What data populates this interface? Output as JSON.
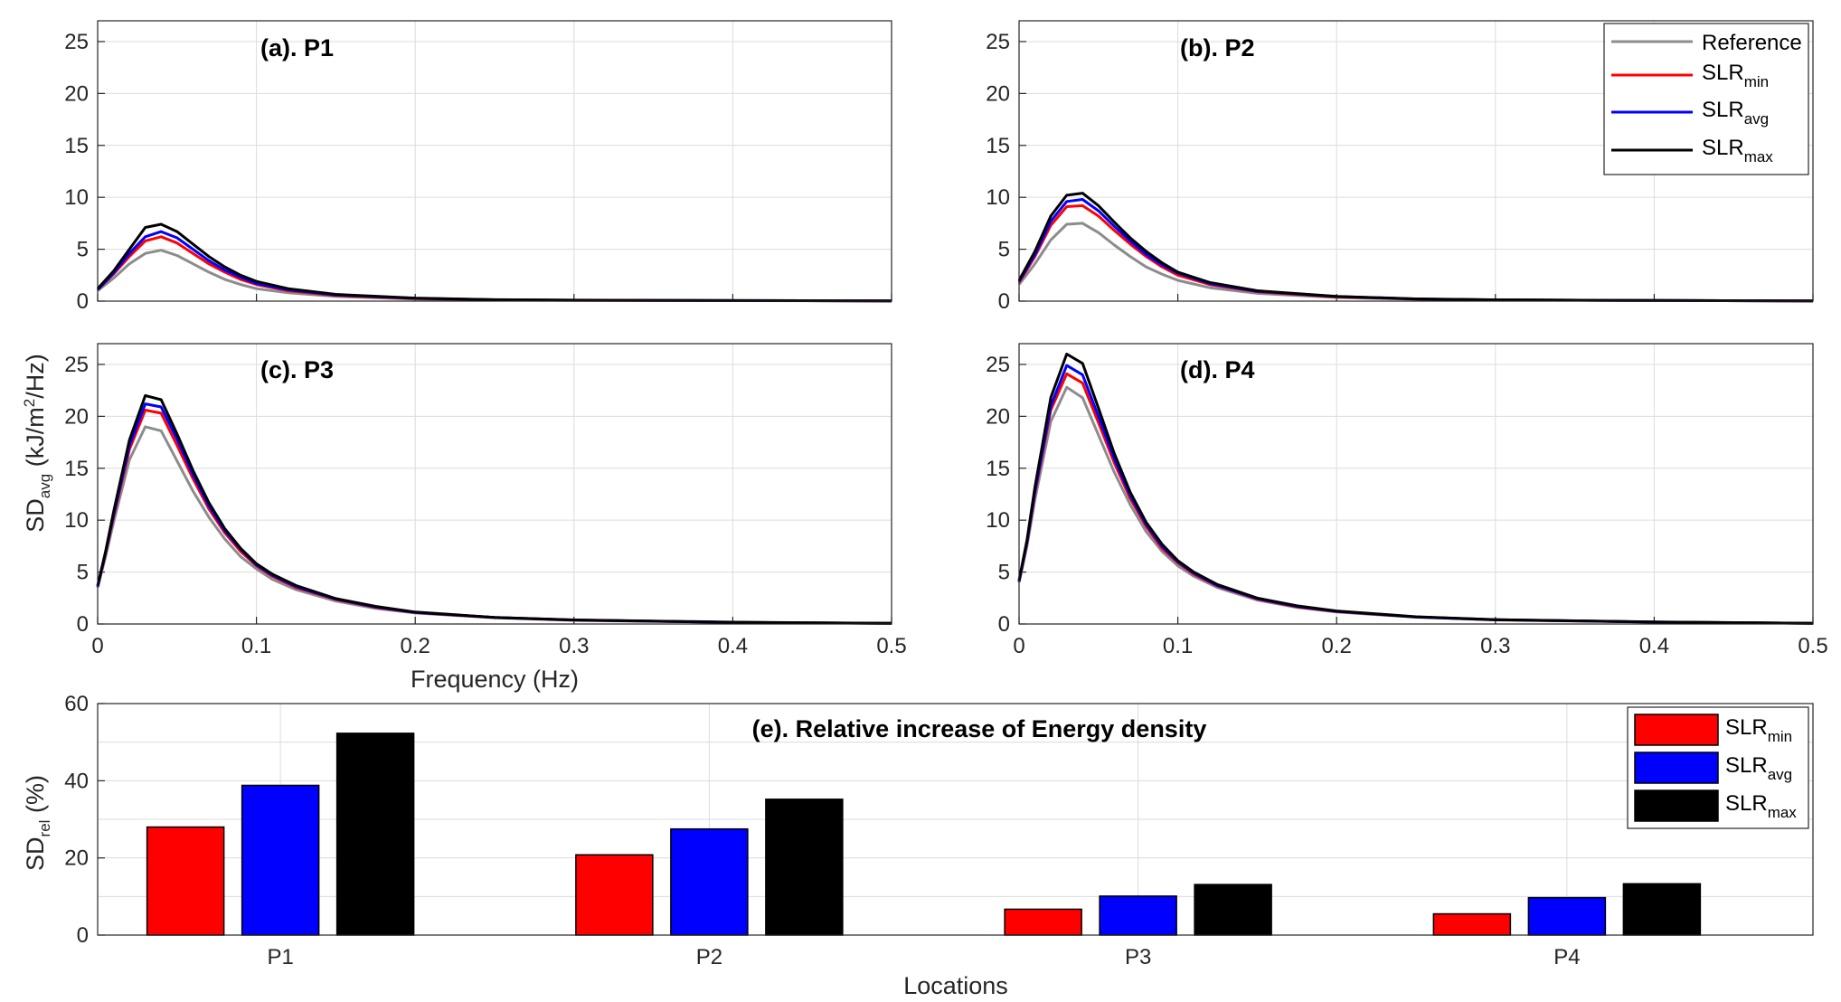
{
  "colors": {
    "reference": "#8c8c8c",
    "slr_min": "#ff0000",
    "slr_avg": "#0000ff",
    "slr_max": "#000000"
  },
  "shared_labels": {
    "frequency_label": "Frequency (Hz)",
    "sd_avg_base": "SD",
    "sd_avg_sub": "avg",
    "sd_avg_unit_pre": " (kJ/m",
    "sd_avg_unit_sup": "2",
    "sd_avg_unit_post": "/Hz)",
    "locations_label": "Locations",
    "sd_rel_base": "SD",
    "sd_rel_sub": "rel",
    "sd_rel_unit": " (%)"
  },
  "legend": {
    "reference": "Reference",
    "slr_base": "SLR",
    "min_sub": "min",
    "avg_sub": "avg",
    "max_sub": "max"
  },
  "chart_data": [
    {
      "type": "line",
      "title": "(a). P1",
      "xlim": [
        0,
        0.5
      ],
      "ylim": [
        0,
        27
      ],
      "x_ticks": [
        "0",
        "0.1",
        "0.2",
        "0.3",
        "0.4",
        "0.5"
      ],
      "y_ticks": [
        "0",
        "5",
        "10",
        "15",
        "20",
        "25"
      ],
      "grid": true,
      "x": [
        0,
        0.01,
        0.02,
        0.03,
        0.04,
        0.05,
        0.06,
        0.07,
        0.08,
        0.09,
        0.1,
        0.12,
        0.15,
        0.2,
        0.25,
        0.3,
        0.4,
        0.5
      ],
      "series": [
        {
          "name": "Reference",
          "values": [
            1.0,
            2.2,
            3.6,
            4.6,
            4.9,
            4.4,
            3.6,
            2.8,
            2.1,
            1.6,
            1.2,
            0.8,
            0.45,
            0.2,
            0.1,
            0.07,
            0.04,
            0.02
          ]
        },
        {
          "name": "SLRmin",
          "values": [
            1.1,
            2.6,
            4.3,
            5.8,
            6.2,
            5.6,
            4.6,
            3.6,
            2.8,
            2.1,
            1.6,
            1.0,
            0.55,
            0.25,
            0.12,
            0.08,
            0.05,
            0.03
          ]
        },
        {
          "name": "SLRavg",
          "values": [
            1.1,
            2.7,
            4.6,
            6.2,
            6.7,
            6.1,
            5.0,
            3.9,
            3.0,
            2.3,
            1.7,
            1.1,
            0.6,
            0.27,
            0.13,
            0.09,
            0.05,
            0.03
          ]
        },
        {
          "name": "SLRmax",
          "values": [
            1.2,
            2.9,
            5.0,
            7.1,
            7.4,
            6.7,
            5.5,
            4.3,
            3.3,
            2.5,
            1.9,
            1.2,
            0.65,
            0.3,
            0.14,
            0.1,
            0.05,
            0.03
          ]
        }
      ]
    },
    {
      "type": "line",
      "title": "(b). P2",
      "xlim": [
        0,
        0.5
      ],
      "ylim": [
        0,
        27
      ],
      "x_ticks": [
        "0",
        "0.1",
        "0.2",
        "0.3",
        "0.4",
        "0.5"
      ],
      "y_ticks": [
        "0",
        "5",
        "10",
        "15",
        "20",
        "25"
      ],
      "grid": true,
      "legend_position": "top-right",
      "x": [
        0,
        0.01,
        0.02,
        0.03,
        0.04,
        0.05,
        0.06,
        0.07,
        0.08,
        0.09,
        0.1,
        0.12,
        0.15,
        0.2,
        0.25,
        0.3,
        0.4,
        0.5
      ],
      "series": [
        {
          "name": "Reference",
          "values": [
            1.6,
            3.6,
            5.9,
            7.4,
            7.5,
            6.6,
            5.4,
            4.3,
            3.3,
            2.6,
            2.0,
            1.3,
            0.75,
            0.35,
            0.18,
            0.1,
            0.05,
            0.03
          ]
        },
        {
          "name": "SLRmin",
          "values": [
            1.8,
            4.3,
            7.3,
            9.1,
            9.2,
            8.2,
            6.8,
            5.5,
            4.3,
            3.3,
            2.5,
            1.6,
            0.9,
            0.42,
            0.2,
            0.12,
            0.06,
            0.03
          ]
        },
        {
          "name": "SLRavg",
          "values": [
            1.9,
            4.5,
            7.7,
            9.6,
            9.8,
            8.7,
            7.2,
            5.8,
            4.5,
            3.5,
            2.7,
            1.7,
            0.95,
            0.44,
            0.21,
            0.12,
            0.06,
            0.03
          ]
        },
        {
          "name": "SLRmax",
          "values": [
            2.0,
            4.8,
            8.2,
            10.2,
            10.4,
            9.2,
            7.6,
            6.1,
            4.8,
            3.7,
            2.8,
            1.8,
            1.0,
            0.46,
            0.22,
            0.13,
            0.06,
            0.03
          ]
        }
      ]
    },
    {
      "type": "line",
      "title": "(c). P3",
      "xlim": [
        0,
        0.5
      ],
      "ylim": [
        0,
        27
      ],
      "x_ticks": [
        "0",
        "0.1",
        "0.2",
        "0.3",
        "0.4",
        "0.5"
      ],
      "y_ticks": [
        "0",
        "5",
        "10",
        "15",
        "20",
        "25"
      ],
      "grid": true,
      "x": [
        0,
        0.005,
        0.01,
        0.02,
        0.03,
        0.04,
        0.05,
        0.06,
        0.07,
        0.08,
        0.09,
        0.1,
        0.11,
        0.125,
        0.15,
        0.175,
        0.2,
        0.25,
        0.3,
        0.4,
        0.5
      ],
      "series": [
        {
          "name": "Reference",
          "values": [
            3.5,
            6.5,
            9.8,
            15.8,
            19.0,
            18.6,
            15.7,
            12.8,
            10.3,
            8.2,
            6.5,
            5.3,
            4.3,
            3.3,
            2.2,
            1.5,
            1.05,
            0.6,
            0.35,
            0.15,
            0.05
          ]
        },
        {
          "name": "SLRmin",
          "values": [
            3.6,
            6.8,
            10.3,
            16.8,
            20.6,
            20.3,
            17.2,
            14.0,
            11.1,
            8.8,
            7.0,
            5.6,
            4.6,
            3.5,
            2.35,
            1.6,
            1.1,
            0.62,
            0.37,
            0.16,
            0.06
          ]
        },
        {
          "name": "SLRavg",
          "values": [
            3.6,
            6.9,
            10.5,
            17.2,
            21.2,
            20.9,
            17.8,
            14.4,
            11.4,
            9.0,
            7.2,
            5.7,
            4.7,
            3.6,
            2.4,
            1.65,
            1.12,
            0.63,
            0.38,
            0.16,
            0.06
          ]
        },
        {
          "name": "SLRmax",
          "values": [
            3.7,
            7.0,
            10.8,
            17.7,
            22.0,
            21.6,
            18.3,
            14.8,
            11.7,
            9.2,
            7.3,
            5.8,
            4.8,
            3.7,
            2.45,
            1.7,
            1.15,
            0.64,
            0.39,
            0.17,
            0.06
          ]
        }
      ]
    },
    {
      "type": "line",
      "title": "(d). P4",
      "xlim": [
        0,
        0.5
      ],
      "ylim": [
        0,
        27
      ],
      "x_ticks": [
        "0",
        "0.1",
        "0.2",
        "0.3",
        "0.4",
        "0.5"
      ],
      "y_ticks": [
        "0",
        "5",
        "10",
        "15",
        "20",
        "25"
      ],
      "grid": true,
      "x": [
        0,
        0.005,
        0.01,
        0.02,
        0.03,
        0.04,
        0.05,
        0.06,
        0.07,
        0.08,
        0.09,
        0.1,
        0.11,
        0.125,
        0.15,
        0.175,
        0.2,
        0.25,
        0.3,
        0.4,
        0.5
      ],
      "series": [
        {
          "name": "Reference",
          "values": [
            4.0,
            7.5,
            12.0,
            19.5,
            22.8,
            21.8,
            18.2,
            14.6,
            11.5,
            8.9,
            7.0,
            5.6,
            4.6,
            3.5,
            2.3,
            1.6,
            1.15,
            0.65,
            0.38,
            0.17,
            0.07
          ]
        },
        {
          "name": "SLRmin",
          "values": [
            4.1,
            7.8,
            12.6,
            20.6,
            24.1,
            23.2,
            19.4,
            15.5,
            12.1,
            9.4,
            7.3,
            5.9,
            4.8,
            3.65,
            2.4,
            1.65,
            1.2,
            0.67,
            0.4,
            0.18,
            0.07
          ]
        },
        {
          "name": "SLRavg",
          "values": [
            4.1,
            7.9,
            12.8,
            21.0,
            24.9,
            24.0,
            20.0,
            15.9,
            12.4,
            9.6,
            7.5,
            6.0,
            4.9,
            3.7,
            2.45,
            1.7,
            1.22,
            0.68,
            0.41,
            0.18,
            0.07
          ]
        },
        {
          "name": "SLRmax",
          "values": [
            4.2,
            8.1,
            13.2,
            21.8,
            26.0,
            25.1,
            20.8,
            16.4,
            12.7,
            9.8,
            7.7,
            6.1,
            5.0,
            3.8,
            2.5,
            1.75,
            1.25,
            0.7,
            0.42,
            0.19,
            0.07
          ]
        }
      ]
    },
    {
      "type": "bar",
      "title": "(e). Relative increase of Energy density",
      "categories": [
        "P1",
        "P2",
        "P3",
        "P4"
      ],
      "ylim": [
        0,
        60
      ],
      "y_ticks": [
        "0",
        "20",
        "40",
        "60"
      ],
      "grid": true,
      "legend_position": "top-right",
      "series": [
        {
          "name": "SLRmin",
          "values": [
            28,
            20.8,
            6.7,
            5.5
          ]
        },
        {
          "name": "SLRavg",
          "values": [
            38.8,
            27.5,
            10.1,
            9.7
          ]
        },
        {
          "name": "SLRmax",
          "values": [
            52.3,
            35.2,
            13.1,
            13.3
          ]
        }
      ]
    }
  ]
}
